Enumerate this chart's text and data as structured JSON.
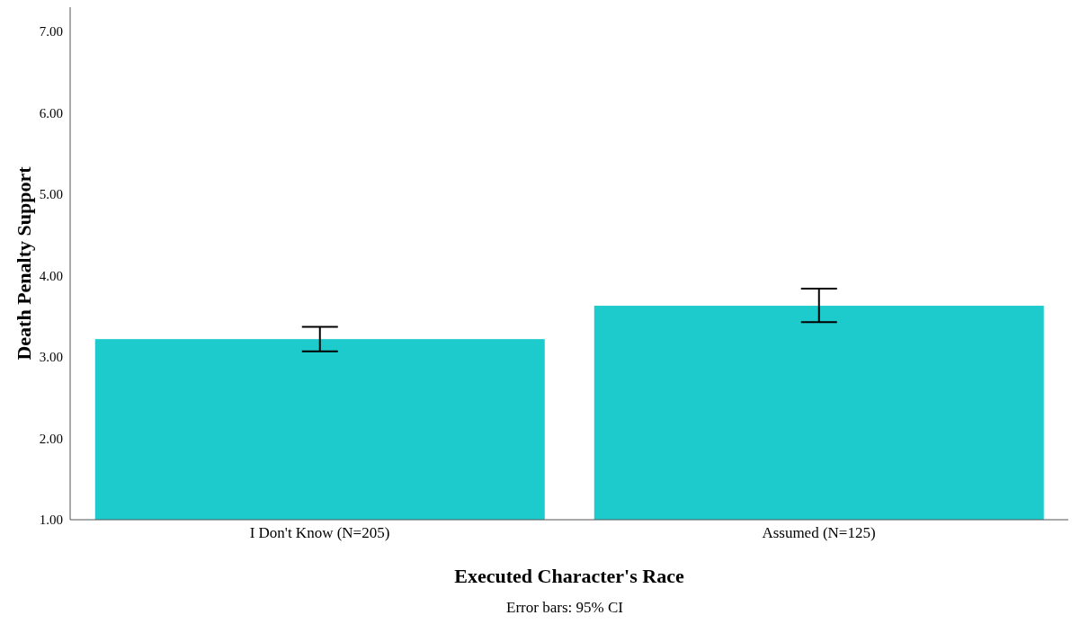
{
  "chart_data": {
    "type": "bar",
    "xlabel": "Executed Character's Race",
    "ylabel": "Death Penalty Support",
    "categories": [
      "I Don't Know (N=205)",
      "Assumed (N=125)"
    ],
    "values": [
      3.22,
      3.63
    ],
    "color": "#1ecbcc",
    "errors": [
      [
        3.07,
        3.37
      ],
      [
        3.43,
        3.84
      ]
    ],
    "ylim": [
      1,
      7.3
    ],
    "yticks": [
      {
        "value": 1,
        "label": "1.00"
      },
      {
        "value": 2,
        "label": "2.00"
      },
      {
        "value": 3,
        "label": "3.00"
      },
      {
        "value": 4,
        "label": "4.00"
      },
      {
        "value": 5,
        "label": "5.00"
      },
      {
        "value": 6,
        "label": "6.00"
      },
      {
        "value": 7,
        "label": "7.00"
      }
    ],
    "grid": false,
    "legend": false,
    "annotations": [
      "Error bars: 95% CI"
    ]
  }
}
